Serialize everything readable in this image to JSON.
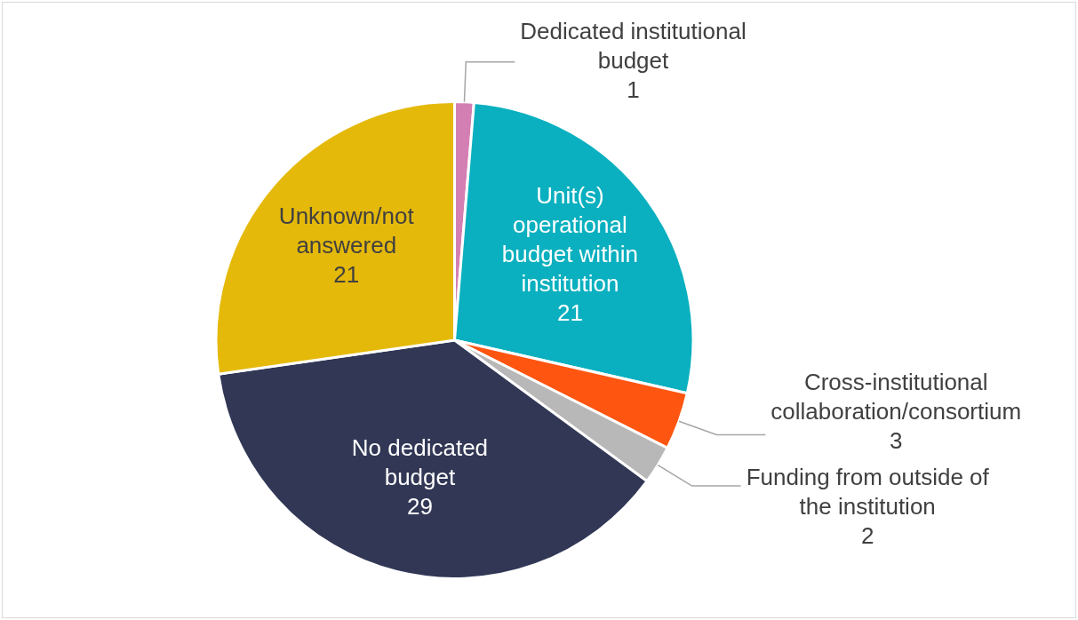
{
  "chart_data": {
    "type": "pie",
    "categories": [
      "Dedicated institutional budget",
      "Unit(s) operational budget within institution",
      "Cross-institutional collaboration/consortium",
      "Funding from outside of the institution",
      "No dedicated budget",
      "Unknown/not answered"
    ],
    "values": [
      1,
      21,
      3,
      2,
      29,
      21
    ],
    "colors": [
      "#d47fb3",
      "#0ab0bf",
      "#fe5511",
      "#b8b8b8",
      "#313755",
      "#e5b90a"
    ],
    "data_labels": true,
    "legend": false
  }
}
